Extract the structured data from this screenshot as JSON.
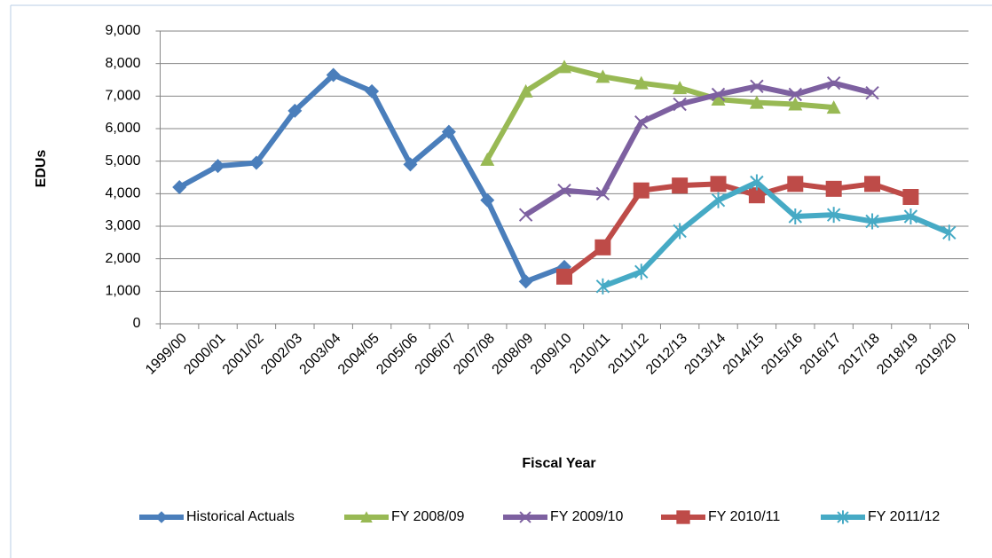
{
  "chart_data": {
    "type": "line",
    "y_label": "EDUs",
    "x_label": "Fiscal Year",
    "categories": [
      "1999/00",
      "2000/01",
      "2001/02",
      "2002/03",
      "2003/04",
      "2004/05",
      "2005/06",
      "2006/07",
      "2007/08",
      "2008/09",
      "2009/10",
      "2010/11",
      "2011/12",
      "2012/13",
      "2013/14",
      "2014/15",
      "2015/16",
      "2016/17",
      "2017/18",
      "2018/19",
      "2019/20"
    ],
    "ylim": [
      0,
      9000
    ],
    "yticks": [
      0,
      {
        "value": 1000,
        "label": "1,000"
      },
      {
        "value": 2000,
        "label": "2,000"
      },
      {
        "value": 3000,
        "label": "3,000"
      },
      {
        "value": 4000,
        "label": "4,000"
      },
      {
        "value": 5000,
        "label": "5,000"
      },
      {
        "value": 6000,
        "label": "6,000"
      },
      {
        "value": 7000,
        "label": "7,000"
      },
      {
        "value": 8000,
        "label": "8,000"
      },
      {
        "value": 9000,
        "label": "9,000"
      }
    ],
    "grid": true,
    "legend": "bottom",
    "series": [
      {
        "name": "Historical Actuals",
        "color": "#4a7ebb",
        "marker": "diamond",
        "values": [
          4200,
          4850,
          4950,
          6550,
          7650,
          7150,
          4900,
          5900,
          3800,
          1300,
          1750,
          null,
          null,
          null,
          null,
          null,
          null,
          null,
          null,
          null,
          null
        ]
      },
      {
        "name": "FY 2008/09",
        "color": "#98b954",
        "marker": "triangle",
        "values": [
          null,
          null,
          null,
          null,
          null,
          null,
          null,
          null,
          5050,
          7150,
          7900,
          7600,
          7400,
          7250,
          6900,
          6800,
          6750,
          6650,
          null,
          null,
          null
        ]
      },
      {
        "name": "FY 2009/10",
        "color": "#7d60a0",
        "marker": "x",
        "values": [
          null,
          null,
          null,
          null,
          null,
          null,
          null,
          null,
          null,
          3350,
          4100,
          4000,
          6200,
          6750,
          7050,
          7300,
          7050,
          7400,
          7100,
          null,
          null
        ]
      },
      {
        "name": "FY 2010/11",
        "color": "#be4b48",
        "marker": "square",
        "values": [
          null,
          null,
          null,
          null,
          null,
          null,
          null,
          null,
          null,
          null,
          1450,
          2350,
          4100,
          4250,
          4300,
          3950,
          4300,
          4150,
          4300,
          3900,
          null
        ]
      },
      {
        "name": "FY 2011/12",
        "color": "#46aac5",
        "marker": "star",
        "values": [
          null,
          null,
          null,
          null,
          null,
          null,
          null,
          null,
          null,
          null,
          null,
          1150,
          1600,
          2850,
          3800,
          4350,
          3300,
          3350,
          3150,
          3300,
          2800
        ]
      }
    ]
  }
}
